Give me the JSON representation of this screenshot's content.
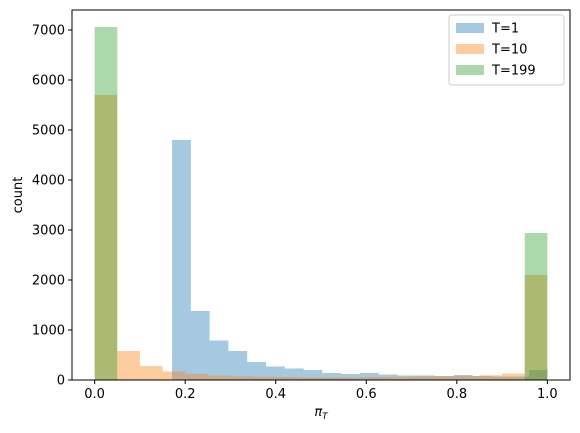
{
  "chart_data": {
    "type": "bar",
    "xlabel": "π",
    "xlabel_sub": "T",
    "ylabel": "count",
    "xlim": [
      -0.05,
      1.05
    ],
    "ylim": [
      0,
      7400
    ],
    "xticks": [
      0.0,
      0.2,
      0.4,
      0.6,
      0.8,
      1.0
    ],
    "xtick_labels": [
      "0.0",
      "0.2",
      "0.4",
      "0.6",
      "0.8",
      "1.0"
    ],
    "yticks": [
      0,
      1000,
      2000,
      3000,
      4000,
      5000,
      6000,
      7000
    ],
    "ytick_labels": [
      "0",
      "1000",
      "2000",
      "3000",
      "4000",
      "5000",
      "6000",
      "7000"
    ],
    "legend_position": "top-right",
    "grid": false,
    "series": [
      {
        "name": "T=1",
        "color": "#1f77b4",
        "opacity": 0.4,
        "bins": [
          {
            "x0": 0.171,
            "x1": 0.2125,
            "count": 4800
          },
          {
            "x0": 0.2125,
            "x1": 0.254,
            "count": 1380
          },
          {
            "x0": 0.254,
            "x1": 0.2955,
            "count": 790
          },
          {
            "x0": 0.2955,
            "x1": 0.337,
            "count": 580
          },
          {
            "x0": 0.337,
            "x1": 0.3785,
            "count": 360
          },
          {
            "x0": 0.3785,
            "x1": 0.42,
            "count": 270
          },
          {
            "x0": 0.42,
            "x1": 0.4615,
            "count": 230
          },
          {
            "x0": 0.4615,
            "x1": 0.503,
            "count": 200
          },
          {
            "x0": 0.503,
            "x1": 0.5445,
            "count": 140
          },
          {
            "x0": 0.5445,
            "x1": 0.586,
            "count": 120
          },
          {
            "x0": 0.586,
            "x1": 0.6275,
            "count": 140
          },
          {
            "x0": 0.6275,
            "x1": 0.669,
            "count": 110
          },
          {
            "x0": 0.669,
            "x1": 0.7105,
            "count": 90
          },
          {
            "x0": 0.7105,
            "x1": 0.752,
            "count": 90
          },
          {
            "x0": 0.752,
            "x1": 0.7935,
            "count": 80
          },
          {
            "x0": 0.7935,
            "x1": 0.835,
            "count": 100
          },
          {
            "x0": 0.835,
            "x1": 0.8765,
            "count": 80
          },
          {
            "x0": 0.8765,
            "x1": 0.918,
            "count": 70
          },
          {
            "x0": 0.918,
            "x1": 0.9595,
            "count": 70
          },
          {
            "x0": 0.9595,
            "x1": 1.0,
            "count": 200
          }
        ]
      },
      {
        "name": "T=10",
        "color": "#ff7f0e",
        "opacity": 0.4,
        "bins": [
          {
            "x0": 0.0,
            "x1": 0.05,
            "count": 5700
          },
          {
            "x0": 0.05,
            "x1": 0.1,
            "count": 580
          },
          {
            "x0": 0.1,
            "x1": 0.15,
            "count": 280
          },
          {
            "x0": 0.15,
            "x1": 0.2,
            "count": 170
          },
          {
            "x0": 0.2,
            "x1": 0.25,
            "count": 120
          },
          {
            "x0": 0.25,
            "x1": 0.3,
            "count": 90
          },
          {
            "x0": 0.3,
            "x1": 0.35,
            "count": 75
          },
          {
            "x0": 0.35,
            "x1": 0.4,
            "count": 65
          },
          {
            "x0": 0.4,
            "x1": 0.45,
            "count": 60
          },
          {
            "x0": 0.45,
            "x1": 0.5,
            "count": 55
          },
          {
            "x0": 0.5,
            "x1": 0.55,
            "count": 55
          },
          {
            "x0": 0.55,
            "x1": 0.6,
            "count": 55
          },
          {
            "x0": 0.6,
            "x1": 0.65,
            "count": 60
          },
          {
            "x0": 0.65,
            "x1": 0.7,
            "count": 65
          },
          {
            "x0": 0.7,
            "x1": 0.75,
            "count": 70
          },
          {
            "x0": 0.75,
            "x1": 0.8,
            "count": 75
          },
          {
            "x0": 0.8,
            "x1": 0.85,
            "count": 80
          },
          {
            "x0": 0.85,
            "x1": 0.9,
            "count": 95
          },
          {
            "x0": 0.9,
            "x1": 0.95,
            "count": 130
          },
          {
            "x0": 0.95,
            "x1": 1.0,
            "count": 2100
          }
        ]
      },
      {
        "name": "T=199",
        "color": "#2ca02c",
        "opacity": 0.4,
        "bins": [
          {
            "x0": 0.0,
            "x1": 0.05,
            "count": 7060
          },
          {
            "x0": 0.05,
            "x1": 0.1,
            "count": 0
          },
          {
            "x0": 0.1,
            "x1": 0.15,
            "count": 0
          },
          {
            "x0": 0.15,
            "x1": 0.2,
            "count": 0
          },
          {
            "x0": 0.2,
            "x1": 0.25,
            "count": 0
          },
          {
            "x0": 0.25,
            "x1": 0.3,
            "count": 0
          },
          {
            "x0": 0.3,
            "x1": 0.35,
            "count": 0
          },
          {
            "x0": 0.35,
            "x1": 0.4,
            "count": 0
          },
          {
            "x0": 0.4,
            "x1": 0.45,
            "count": 0
          },
          {
            "x0": 0.45,
            "x1": 0.5,
            "count": 0
          },
          {
            "x0": 0.5,
            "x1": 0.55,
            "count": 0
          },
          {
            "x0": 0.55,
            "x1": 0.6,
            "count": 0
          },
          {
            "x0": 0.6,
            "x1": 0.65,
            "count": 0
          },
          {
            "x0": 0.65,
            "x1": 0.7,
            "count": 0
          },
          {
            "x0": 0.7,
            "x1": 0.75,
            "count": 0
          },
          {
            "x0": 0.75,
            "x1": 0.8,
            "count": 0
          },
          {
            "x0": 0.8,
            "x1": 0.85,
            "count": 0
          },
          {
            "x0": 0.85,
            "x1": 0.9,
            "count": 0
          },
          {
            "x0": 0.9,
            "x1": 0.95,
            "count": 0
          },
          {
            "x0": 0.95,
            "x1": 1.0,
            "count": 2940
          }
        ]
      }
    ]
  }
}
